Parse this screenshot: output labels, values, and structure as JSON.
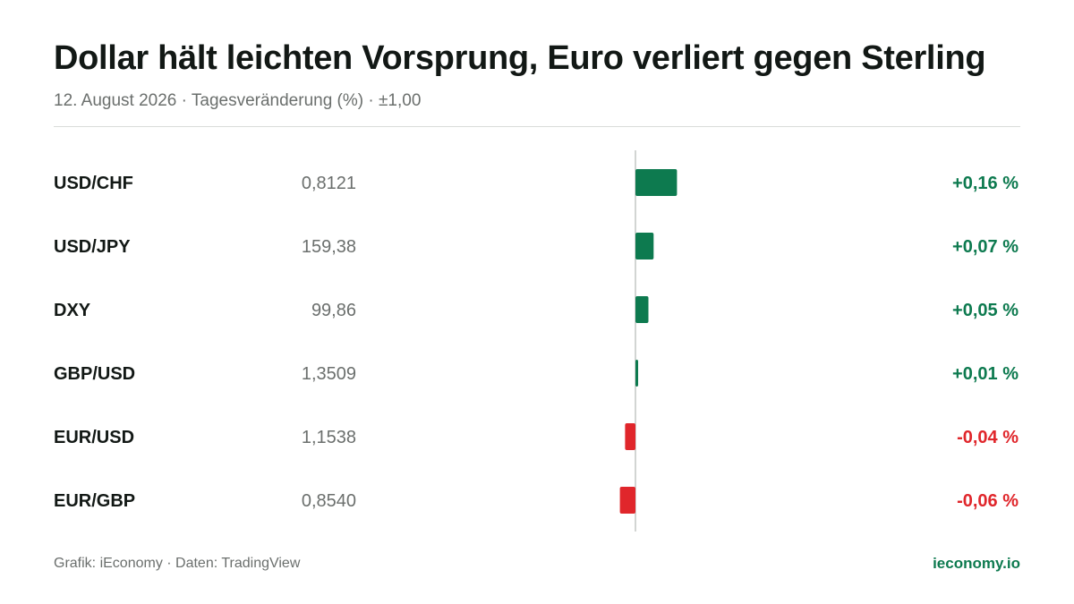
{
  "header": {
    "title": "Dollar hält leichten Vorsprung, Euro verliert gegen Sterling",
    "subtitle": "12. August 2026 · Tagesveränderung (%) · ±1,00"
  },
  "footer": {
    "source": "Grafik: iEconomy · Daten: TradingView",
    "brand": "ieconomy.io"
  },
  "colors": {
    "positive": "#0d7a4f",
    "negative": "#e0262b",
    "axis": "#d2d5d3"
  },
  "chart_data": {
    "type": "bar",
    "orientation": "horizontal",
    "categories": [
      "USD/CHF",
      "USD/JPY",
      "DXY",
      "GBP/USD",
      "EUR/USD",
      "EUR/GBP"
    ],
    "rates": [
      "0,8121",
      "159,38",
      "99,86",
      "1,3509",
      "1,1538",
      "0,8540"
    ],
    "values": [
      0.16,
      0.07,
      0.05,
      0.01,
      -0.04,
      -0.06
    ],
    "value_labels": [
      "+0,16 %",
      "+0,07 %",
      "+0,05 %",
      "+0,01 %",
      "-0,04 %",
      "-0,06 %"
    ],
    "xlim": [
      -1,
      1
    ],
    "grid": false
  }
}
